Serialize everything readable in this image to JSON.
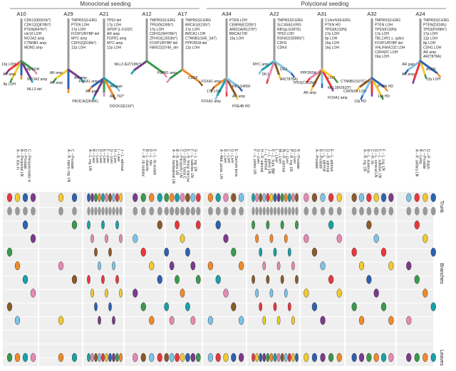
{
  "headers": {
    "monoclonal": "Monoclonal seeding",
    "polyclonal": "Polyclonal seeding"
  },
  "row_labels": {
    "trunk": "Trunk",
    "branches": "Branches",
    "leaves": "Leaves"
  },
  "colors": {
    "trunk_gray": "#999999",
    "trunk_gray_dark": "#7a7a7a",
    "grid_bg": "#efefef",
    "grid_line": "#ffffff",
    "red": "#e8383d",
    "yellow": "#f3c930",
    "blue": "#2e62b0",
    "purple": "#7b3b8c",
    "green": "#3a9a4c",
    "orange": "#f08a2c",
    "teal": "#1aa0a8",
    "pink": "#e58ab3",
    "brown": "#8b5a2b",
    "lightblue": "#7ec3e8"
  },
  "patients": [
    {
      "id": "A10",
      "trunk_mutations": [
        "CDK12(K691fs*)",
        "CDK12(Q878fs*)",
        "PTEN(R47fs*)",
        "chr10 LOH",
        "NCOA2 amp",
        "CTNNB1 amp",
        "MDM2 amp"
      ],
      "branch_mutations": [
        "13q LOH",
        "8p LOH",
        "AR amp",
        "NCOA2 amp",
        "8p LOH",
        "MLL3 del",
        "MYC amp"
      ],
      "samples": [
        "A – R. iliac ln",
        "B – Periportal LN",
        "D – Prostate",
        "C – Peripancreatic ln"
      ]
    },
    {
      "id": "A29",
      "trunk_mutations": [
        "TMPRSS2-ERG",
        "PTEN LOH",
        "17p LOH",
        "FOXP1/RYBP del",
        "MYC amp",
        "CDH1(Q618fs*)",
        "12p LOH"
      ],
      "branch_mutations": [
        "AR amp",
        "AR amp",
        "AR amp"
      ],
      "samples": [
        "A – R. supra. ing. LN",
        "C – Prostate"
      ]
    },
    {
      "id": "A21",
      "trunk_mutations": [
        "TP53 del",
        "17p LOH",
        "SPOP (L-F102C",
        "AR amp",
        "FGFR1 amp",
        "MYC amp",
        "12p LOH"
      ],
      "branch_mutations": [
        "FOXA1 amp",
        "AR gain",
        "AR gain",
        "AR_702*",
        "PIK3CA(Q546K)",
        "DOCK2(E116*)"
      ],
      "samples": [
        "A – L. ing. LN",
        "B – Liver",
        "C – Liver",
        "D – Liver",
        "E – Liver",
        "F – Liver",
        "G – Liver",
        "H – Liver",
        "I – Liver",
        "J – L. adrenal"
      ]
    },
    {
      "id": "A12",
      "trunk_mutations": [
        "TMPRSS2-ERG",
        "TP53(N239fs*)",
        "17p LOH",
        "CDH11(W478fs*)",
        "ZFHX3(L2653fs*)",
        "FOXP1/RYBP del",
        "FANCD2(Y46_del"
      ],
      "branch_mutations": [
        "MLL3 (E2718fs*)"
      ],
      "samples": [
        "F – R. rib nodular",
        "B – L. clavicle",
        "D – L. ribs",
        "E – L. rib nodule"
      ]
    },
    {
      "id": "A17",
      "trunk_mutations": [
        "TMPRSS2-ERG",
        "BRCA1(E23fs*)",
        "17p LOH",
        "BRCA1 LOH",
        "CTNNB1(S45_S47)",
        "PPP2R2A del",
        "12p LOH"
      ],
      "branch_mutations": [
        "FGFR1 amp",
        "COEF"
      ],
      "samples": [
        "A – R. mediastinal LN",
        "B – R. pelvic LN",
        "C – Paraaortic LN",
        "D – Subcl. fossa C",
        "E – R. femur marrow",
        "F – L. subclav. LN",
        "G – L. ing. LN"
      ]
    },
    {
      "id": "A34",
      "trunk_mutations": [
        "PTEN LOH",
        "CEBPA(E220fs*)",
        "ARID1A(R1276*)",
        "BRCA2 HD",
        "16q LOH"
      ],
      "branch_mutations": [
        "FOXA1 amp",
        "RB1 S456F",
        "17p LOH",
        "AR amp",
        "FOXA1 amp",
        "PDE4B HD"
      ],
      "samples": [
        "A – Abd. paras. LN",
        "B – Liver",
        "C – Liver",
        "D – Liver",
        "E – Sacrum bone"
      ]
    },
    {
      "id": "A22",
      "trunk_mutations": [
        "TMPRSS2-ERG",
        "SLC45A3-ERG",
        "RB1(p.G287D)",
        "TP53 LOH",
        "RUNX2(S595fs*)",
        "CDH1",
        "CDK4"
      ],
      "branch_mutations": [
        "MYC amp",
        "DGJ",
        "DKJ",
        "AR(T878A)"
      ],
      "samples": [
        "F – L. pelvic LN",
        "G – Liver",
        "H – R. adrenal",
        "I – L. adrenal",
        "J – L. pelvic LN",
        "K – L. hum. BM",
        "L – Liver",
        "M – Liver",
        "N – R. adrenal",
        "O – Liver",
        "P – R. ing. LN",
        "Q – Liver",
        "R – Prostate"
      ]
    },
    {
      "id": "A31",
      "trunk_mutations": [
        "C14orf166-ERG",
        "PTEN HD",
        "TP53(K132N)",
        "17p LOH",
        "8p LOH",
        "16q LOH",
        "16q LOH"
      ],
      "branch_mutations": [
        "PPP2R5A",
        "LOH",
        "TP53(C302fs*)",
        "MLL3(R2610*)",
        "AR amp",
        "FOXA1 amp",
        "FOXP1/RYBP del",
        "PDE4B LOH"
      ],
      "samples": [
        "A – Prostate",
        "B – Prostate",
        "C – L. adrenal",
        "D – R. adrenal",
        "E – L. adrenal"
      ]
    },
    {
      "id": "A32",
      "trunk_mutations": [
        "TMPRSS2-ERG",
        "PTEN LOH",
        "TP53(K132N)",
        "17p LOH",
        "TBL1XR1 s. splice",
        "FOXP1/RYBP del",
        "VHL/FANCD2 LOH",
        "CDKN2C LOH",
        "16q LOH"
      ],
      "branch_mutations": [
        "CTNNB1(S37C)",
        "PTEN HD",
        "CDKN1B LOH",
        "13q HD",
        "12p HD"
      ],
      "samples": [
        "A – R. ing. LN",
        "B – L. humerus",
        "C – R. rib",
        "D – L. cervical LN",
        "E – L. subclav. LN",
        "F – L. ing. LN"
      ]
    },
    {
      "id": "A24",
      "trunk_mutations": [
        "TMPRSS2-ERG",
        "PTEN(D324fs)",
        "TP53(P209fs*)",
        "17p LOH",
        "12p LOH",
        "8p LOH",
        "CDH1 LOH",
        "AR amp",
        "AR(T878A)"
      ],
      "branch_mutations": [
        "AR gain",
        "ACDE",
        "AR amp",
        "12p LOH"
      ],
      "samples": [
        "A – R. axillary LN",
        "B – Lung",
        "C – Prostate",
        "D – R. diaph."
      ]
    }
  ]
}
